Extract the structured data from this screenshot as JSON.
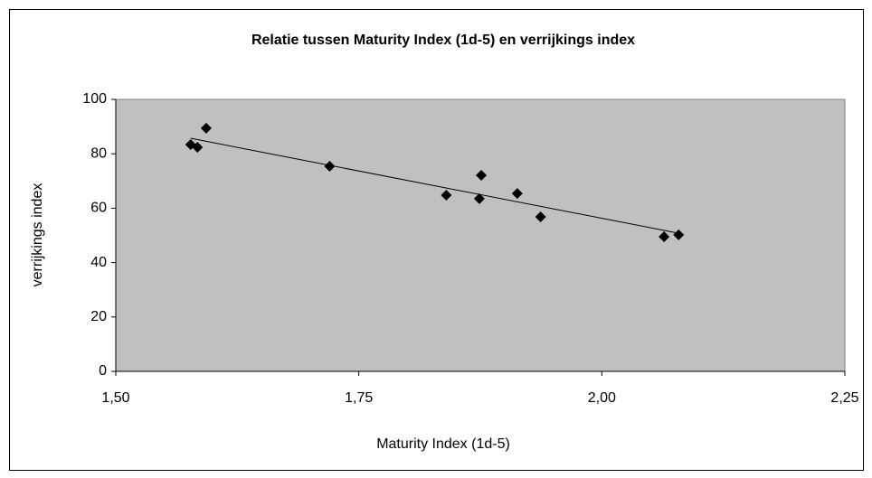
{
  "chart_data": {
    "type": "scatter",
    "title": "Relatie tussen Maturity Index (1d-5) en verrijkings index",
    "x_label": "Maturity Index (1d-5)",
    "y_label": "verrijkings index",
    "series": [
      {
        "color": "#000000",
        "x": [
          1.577,
          1.584,
          1.593,
          1.72,
          1.84,
          1.874,
          1.876,
          1.913,
          1.937,
          2.064,
          2.079
        ],
        "values": [
          83.4,
          82.4,
          89.4,
          75.4,
          64.8,
          63.5,
          72.1,
          65.4,
          56.8,
          49.5,
          50.2
        ]
      }
    ],
    "trendline": {
      "x": [
        1.577,
        2.079
      ],
      "values": [
        85.7,
        50.8
      ],
      "color": "#000000"
    },
    "xlim": [
      1.5,
      2.25
    ],
    "xticks": [
      {
        "value": 1.5,
        "label": "1,50"
      },
      {
        "value": 1.75,
        "label": "1,75"
      },
      {
        "value": 2.0,
        "label": "2,00"
      },
      {
        "value": 2.25,
        "label": "2,25"
      }
    ],
    "ylim": [
      0,
      100
    ],
    "yticks": [
      0,
      20,
      40,
      60,
      80,
      100
    ],
    "plot_background": "#c0c0c0",
    "grid": false
  }
}
